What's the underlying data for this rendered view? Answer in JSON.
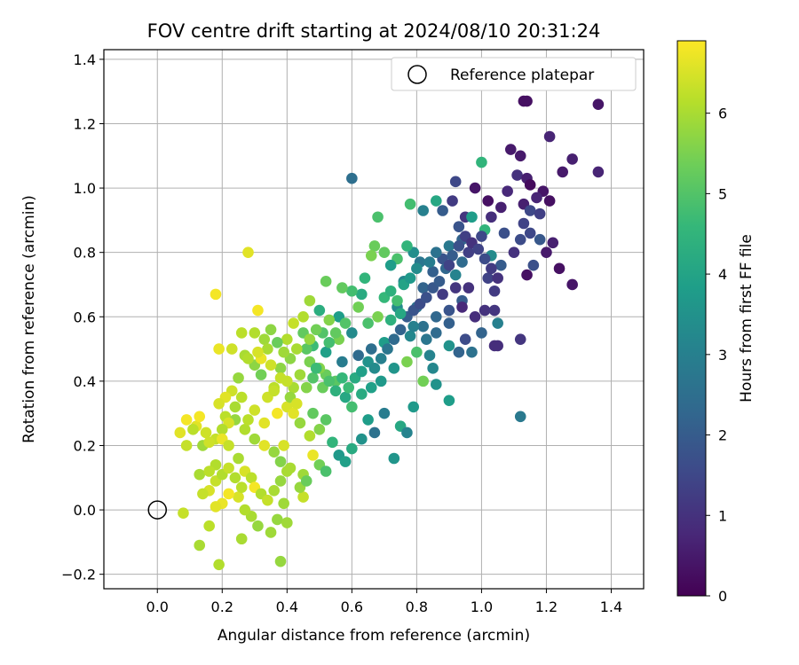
{
  "chart_data": {
    "type": "scatter",
    "title": "FOV centre drift starting at 2024/08/10 20:31:24",
    "xlabel": "Angular distance from reference (arcmin)",
    "ylabel": "Rotation from reference (arcmin)",
    "xlim": [
      -0.165,
      1.5
    ],
    "ylim": [
      -0.245,
      1.43
    ],
    "xticks": [
      "0.0",
      "0.2",
      "0.4",
      "0.6",
      "0.8",
      "1.0",
      "1.2",
      "1.4"
    ],
    "yticks": [
      "−0.2",
      "0.0",
      "0.2",
      "0.4",
      "0.6",
      "0.8",
      "1.0",
      "1.2",
      "1.4"
    ],
    "grid": true,
    "legend": {
      "position": "top-right",
      "entries": [
        {
          "label": "Reference platepar",
          "marker": "open-circle"
        }
      ]
    },
    "reference_point": {
      "x": 0.0,
      "y": 0.0
    },
    "colorbar": {
      "label": "Hours from first FF file",
      "range": [
        0,
        6.9
      ],
      "ticks": [
        "0",
        "1",
        "2",
        "3",
        "4",
        "5",
        "6"
      ],
      "colormap": "viridis"
    },
    "colormap_stops": [
      "#440154",
      "#482878",
      "#3e4989",
      "#31688e",
      "#26828e",
      "#1f9e89",
      "#35b779",
      "#6ece58",
      "#b5de2b",
      "#fde725"
    ],
    "points": [
      [
        1.14,
        1.27,
        0.3
      ],
      [
        1.13,
        1.27,
        0.3
      ],
      [
        1.36,
        1.26,
        0.4
      ],
      [
        1.21,
        1.16,
        0.7
      ],
      [
        1.09,
        1.12,
        0.5
      ],
      [
        1.12,
        1.1,
        0.5
      ],
      [
        1.28,
        1.09,
        0.6
      ],
      [
        1.25,
        1.05,
        0.5
      ],
      [
        1.36,
        1.05,
        0.7
      ],
      [
        1.11,
        1.04,
        1.0
      ],
      [
        1.14,
        1.03,
        0.6
      ],
      [
        1.15,
        1.01,
        0.2
      ],
      [
        1.19,
        0.99,
        0.4
      ],
      [
        1.21,
        0.96,
        0.3
      ],
      [
        1.17,
        0.97,
        0.7
      ],
      [
        1.13,
        0.95,
        0.6
      ],
      [
        1.08,
        0.99,
        0.8
      ],
      [
        1.06,
        0.94,
        0.6
      ],
      [
        1.15,
        0.93,
        1.5
      ],
      [
        1.03,
        0.91,
        0.9
      ],
      [
        0.95,
        0.91,
        1.1
      ],
      [
        0.93,
        0.88,
        1.8
      ],
      [
        1.18,
        0.92,
        1.3
      ],
      [
        1.13,
        0.89,
        1.4
      ],
      [
        1.15,
        0.86,
        1.5
      ],
      [
        1.12,
        0.84,
        1.6
      ],
      [
        1.18,
        0.84,
        1.9
      ],
      [
        1.07,
        0.86,
        1.7
      ],
      [
        1.22,
        0.83,
        0.6
      ],
      [
        1.2,
        0.8,
        0.5
      ],
      [
        1.1,
        0.8,
        1.0
      ],
      [
        1.16,
        0.76,
        1.7
      ],
      [
        1.24,
        0.75,
        0.3
      ],
      [
        1.14,
        0.73,
        0.3
      ],
      [
        1.28,
        0.7,
        0.4
      ],
      [
        0.92,
        1.02,
        1.5
      ],
      [
        0.6,
        1.03,
        2.5
      ],
      [
        1.0,
        1.08,
        4.5
      ],
      [
        0.98,
        1.0,
        0.4
      ],
      [
        1.02,
        0.96,
        0.3
      ],
      [
        0.91,
        0.96,
        1.2
      ],
      [
        0.88,
        0.93,
        2.0
      ],
      [
        0.82,
        0.93,
        3.0
      ],
      [
        0.86,
        0.96,
        4.1
      ],
      [
        0.78,
        0.95,
        4.8
      ],
      [
        0.97,
        0.91,
        3.8
      ],
      [
        1.01,
        0.87,
        4.5
      ],
      [
        0.68,
        0.91,
        4.9
      ],
      [
        1.0,
        0.85,
        1.5
      ],
      [
        0.96,
        0.8,
        1.3
      ],
      [
        0.94,
        0.84,
        2.2
      ],
      [
        0.9,
        0.82,
        2.8
      ],
      [
        0.88,
        0.78,
        1.8
      ],
      [
        0.94,
        0.77,
        2.4
      ],
      [
        0.92,
        0.73,
        3.1
      ],
      [
        0.85,
        0.74,
        2.1
      ],
      [
        0.81,
        0.77,
        2.7
      ],
      [
        0.79,
        0.8,
        3.4
      ],
      [
        0.77,
        0.82,
        4.5
      ],
      [
        0.74,
        0.78,
        4.9
      ],
      [
        0.72,
        0.76,
        3.8
      ],
      [
        0.7,
        0.8,
        5.2
      ],
      [
        0.67,
        0.82,
        5.3
      ],
      [
        0.66,
        0.79,
        5.5
      ],
      [
        0.76,
        0.71,
        3.2
      ],
      [
        0.82,
        0.69,
        2.2
      ],
      [
        0.88,
        0.67,
        1.2
      ],
      [
        0.96,
        0.69,
        1.0
      ],
      [
        1.02,
        0.72,
        1.4
      ],
      [
        1.06,
        0.76,
        2.0
      ],
      [
        1.03,
        0.79,
        3.3
      ],
      [
        1.04,
        0.68,
        1.2
      ],
      [
        1.01,
        0.62,
        1.0
      ],
      [
        0.94,
        0.65,
        2.0
      ],
      [
        0.9,
        0.62,
        1.8
      ],
      [
        0.86,
        0.6,
        2.3
      ],
      [
        0.8,
        0.63,
        2.6
      ],
      [
        0.74,
        0.63,
        3.3
      ],
      [
        0.7,
        0.66,
        4.6
      ],
      [
        0.68,
        0.6,
        5.5
      ],
      [
        0.65,
        0.58,
        4.9
      ],
      [
        0.63,
        0.67,
        4.2
      ],
      [
        0.6,
        0.68,
        4.8
      ],
      [
        0.57,
        0.69,
        5.2
      ],
      [
        0.52,
        0.71,
        5.3
      ],
      [
        0.5,
        0.62,
        4.3
      ],
      [
        0.56,
        0.6,
        3.8
      ],
      [
        0.6,
        0.55,
        3.3
      ],
      [
        0.56,
        0.53,
        5.5
      ],
      [
        0.53,
        0.59,
        5.6
      ],
      [
        0.47,
        0.65,
        5.9
      ],
      [
        0.45,
        0.6,
        6.1
      ],
      [
        0.42,
        0.58,
        6.3
      ],
      [
        0.4,
        0.53,
        6.1
      ],
      [
        0.45,
        0.55,
        5.2
      ],
      [
        0.48,
        0.51,
        4.7
      ],
      [
        0.52,
        0.49,
        3.9
      ],
      [
        0.57,
        0.46,
        2.9
      ],
      [
        0.62,
        0.48,
        2.4
      ],
      [
        0.66,
        0.5,
        2.5
      ],
      [
        0.7,
        0.52,
        3.8
      ],
      [
        0.78,
        0.54,
        3.2
      ],
      [
        0.82,
        0.57,
        2.6
      ],
      [
        0.86,
        0.55,
        2.4
      ],
      [
        0.9,
        0.58,
        2.1
      ],
      [
        0.95,
        0.53,
        1.6
      ],
      [
        1.0,
        0.55,
        2.2
      ],
      [
        1.05,
        0.58,
        3.0
      ],
      [
        1.04,
        0.51,
        0.9
      ],
      [
        0.97,
        0.49,
        2.6
      ],
      [
        0.9,
        0.51,
        3.5
      ],
      [
        0.84,
        0.48,
        3.1
      ],
      [
        0.8,
        0.49,
        4.9
      ],
      [
        0.77,
        0.46,
        5.5
      ],
      [
        0.73,
        0.44,
        3.6
      ],
      [
        0.69,
        0.4,
        3.7
      ],
      [
        0.66,
        0.38,
        3.9
      ],
      [
        0.63,
        0.36,
        4.2
      ],
      [
        0.6,
        0.32,
        4.8
      ],
      [
        0.58,
        0.35,
        4.1
      ],
      [
        0.55,
        0.4,
        5.1
      ],
      [
        0.52,
        0.42,
        5.3
      ],
      [
        0.5,
        0.44,
        5.6
      ],
      [
        0.47,
        0.46,
        5.5
      ],
      [
        0.44,
        0.42,
        5.9
      ],
      [
        0.42,
        0.38,
        6.0
      ],
      [
        0.4,
        0.4,
        6.3
      ],
      [
        0.38,
        0.44,
        5.7
      ],
      [
        0.36,
        0.38,
        6.2
      ],
      [
        0.34,
        0.35,
        6.4
      ],
      [
        0.32,
        0.42,
        5.4
      ],
      [
        0.3,
        0.45,
        5.7
      ],
      [
        0.27,
        0.48,
        6.0
      ],
      [
        0.25,
        0.41,
        5.8
      ],
      [
        0.23,
        0.37,
        6.4
      ],
      [
        0.21,
        0.35,
        6.6
      ],
      [
        0.19,
        0.33,
        6.5
      ],
      [
        0.21,
        0.29,
        6.2
      ],
      [
        0.24,
        0.28,
        5.8
      ],
      [
        0.27,
        0.25,
        6.1
      ],
      [
        0.3,
        0.22,
        5.9
      ],
      [
        0.33,
        0.2,
        6.6
      ],
      [
        0.36,
        0.18,
        5.8
      ],
      [
        0.38,
        0.15,
        5.6
      ],
      [
        0.41,
        0.13,
        6.0
      ],
      [
        0.45,
        0.11,
        5.9
      ],
      [
        0.48,
        0.17,
        6.7
      ],
      [
        0.5,
        0.14,
        5.4
      ],
      [
        0.52,
        0.12,
        4.9
      ],
      [
        0.54,
        0.21,
        4.5
      ],
      [
        0.56,
        0.17,
        3.7
      ],
      [
        0.58,
        0.15,
        3.9
      ],
      [
        0.6,
        0.19,
        4.2
      ],
      [
        0.63,
        0.22,
        3.5
      ],
      [
        0.65,
        0.28,
        3.8
      ],
      [
        0.67,
        0.24,
        2.6
      ],
      [
        0.7,
        0.3,
        2.9
      ],
      [
        0.73,
        0.16,
        3.6
      ],
      [
        0.75,
        0.26,
        4.1
      ],
      [
        0.77,
        0.24,
        3.1
      ],
      [
        0.79,
        0.32,
        3.7
      ],
      [
        0.82,
        0.4,
        5.4
      ],
      [
        0.85,
        0.44,
        3.2
      ],
      [
        0.86,
        0.39,
        3.5
      ],
      [
        0.9,
        0.34,
        3.8
      ],
      [
        0.93,
        0.49,
        2.2
      ],
      [
        1.12,
        0.29,
        2.8
      ],
      [
        1.12,
        0.53,
        1.1
      ],
      [
        1.05,
        0.51,
        0.9
      ],
      [
        0.18,
        0.67,
        6.8
      ],
      [
        0.28,
        0.8,
        6.6
      ],
      [
        0.31,
        0.62,
        6.8
      ],
      [
        0.19,
        0.5,
        6.7
      ],
      [
        0.23,
        0.5,
        6.4
      ],
      [
        0.26,
        0.55,
        6.2
      ],
      [
        0.3,
        0.55,
        6.1
      ],
      [
        0.33,
        0.53,
        5.9
      ],
      [
        0.35,
        0.56,
        5.7
      ],
      [
        0.28,
        0.47,
        6.1
      ],
      [
        0.32,
        0.47,
        6.7
      ],
      [
        0.35,
        0.45,
        6.4
      ],
      [
        0.38,
        0.41,
        6.3
      ],
      [
        0.4,
        0.32,
        6.5
      ],
      [
        0.42,
        0.3,
        6.6
      ],
      [
        0.44,
        0.27,
        5.8
      ],
      [
        0.47,
        0.23,
        6.1
      ],
      [
        0.45,
        0.04,
        6.3
      ],
      [
        0.44,
        0.07,
        5.8
      ],
      [
        0.46,
        0.09,
        5.3
      ],
      [
        0.48,
        0.3,
        5.2
      ],
      [
        0.5,
        0.25,
        5.6
      ],
      [
        0.52,
        0.28,
        5.1
      ],
      [
        0.37,
        0.3,
        6.8
      ],
      [
        0.33,
        0.27,
        6.6
      ],
      [
        0.3,
        0.31,
        6.4
      ],
      [
        0.28,
        0.28,
        6.2
      ],
      [
        0.26,
        0.35,
        6.2
      ],
      [
        0.24,
        0.32,
        6.0
      ],
      [
        0.22,
        0.27,
        6.5
      ],
      [
        0.2,
        0.25,
        6.1
      ],
      [
        0.18,
        0.22,
        6.3
      ],
      [
        0.15,
        0.24,
        6.4
      ],
      [
        0.12,
        0.26,
        6.6
      ],
      [
        0.09,
        0.28,
        6.8
      ],
      [
        0.09,
        0.2,
        6.3
      ],
      [
        0.07,
        0.24,
        6.6
      ],
      [
        0.11,
        0.25,
        6.2
      ],
      [
        0.13,
        0.29,
        6.8
      ],
      [
        0.14,
        0.2,
        5.9
      ],
      [
        0.16,
        0.21,
        6.4
      ],
      [
        0.18,
        0.14,
        6.1
      ],
      [
        0.2,
        0.22,
        6.7
      ],
      [
        0.22,
        0.2,
        6.3
      ],
      [
        0.25,
        0.16,
        6.0
      ],
      [
        0.27,
        0.12,
        6.5
      ],
      [
        0.29,
        0.1,
        6.2
      ],
      [
        0.3,
        0.07,
        6.8
      ],
      [
        0.32,
        0.05,
        6.1
      ],
      [
        0.34,
        0.03,
        6.3
      ],
      [
        0.36,
        0.06,
        6.0
      ],
      [
        0.38,
        0.09,
        5.8
      ],
      [
        0.4,
        0.12,
        6.0
      ],
      [
        0.39,
        0.02,
        5.9
      ],
      [
        0.37,
        -0.03,
        5.8
      ],
      [
        0.35,
        -0.07,
        5.9
      ],
      [
        0.31,
        -0.05,
        5.8
      ],
      [
        0.29,
        -0.02,
        6.0
      ],
      [
        0.27,
        0.0,
        6.1
      ],
      [
        0.25,
        0.04,
        6.5
      ],
      [
        0.22,
        0.05,
        6.8
      ],
      [
        0.2,
        0.02,
        6.7
      ],
      [
        0.18,
        0.01,
        6.6
      ],
      [
        0.16,
        0.06,
        6.5
      ],
      [
        0.14,
        0.05,
        6.3
      ],
      [
        0.13,
        0.11,
        6.0
      ],
      [
        0.16,
        0.12,
        6.2
      ],
      [
        0.18,
        0.09,
        6.3
      ],
      [
        0.2,
        0.11,
        6.1
      ],
      [
        0.22,
        0.13,
        6.3
      ],
      [
        0.24,
        0.1,
        6.1
      ],
      [
        0.26,
        0.07,
        6.2
      ],
      [
        0.08,
        -0.01,
        6.3
      ],
      [
        0.16,
        -0.05,
        6.2
      ],
      [
        0.13,
        -0.11,
        6.0
      ],
      [
        0.19,
        -0.17,
        6.1
      ],
      [
        0.26,
        -0.09,
        6.0
      ],
      [
        0.38,
        -0.16,
        5.8
      ],
      [
        0.4,
        -0.04,
        5.9
      ],
      [
        0.36,
        0.37,
        6.3
      ],
      [
        0.39,
        0.2,
        6.5
      ],
      [
        0.41,
        0.35,
        5.8
      ],
      [
        0.43,
        0.33,
        6.5
      ],
      [
        0.46,
        0.5,
        5.1
      ],
      [
        0.46,
        0.38,
        5.6
      ],
      [
        0.48,
        0.41,
        5.0
      ],
      [
        0.49,
        0.44,
        4.7
      ],
      [
        0.51,
        0.38,
        5.3
      ],
      [
        0.53,
        0.4,
        4.9
      ],
      [
        0.55,
        0.37,
        4.4
      ],
      [
        0.57,
        0.41,
        4.6
      ],
      [
        0.59,
        0.38,
        4.7
      ],
      [
        0.61,
        0.41,
        4.2
      ],
      [
        0.63,
        0.43,
        3.9
      ],
      [
        0.65,
        0.46,
        3.5
      ],
      [
        0.67,
        0.44,
        3.3
      ],
      [
        0.69,
        0.47,
        3.0
      ],
      [
        0.71,
        0.5,
        2.7
      ],
      [
        0.73,
        0.53,
        2.4
      ],
      [
        0.75,
        0.56,
        2.2
      ],
      [
        0.77,
        0.6,
        2.0
      ],
      [
        0.79,
        0.62,
        1.8
      ],
      [
        0.81,
        0.64,
        1.6
      ],
      [
        0.83,
        0.66,
        1.7
      ],
      [
        0.85,
        0.69,
        1.9
      ],
      [
        0.87,
        0.71,
        2.0
      ],
      [
        0.89,
        0.75,
        2.3
      ],
      [
        0.91,
        0.79,
        2.0
      ],
      [
        0.93,
        0.82,
        1.7
      ],
      [
        0.95,
        0.85,
        1.3
      ],
      [
        0.97,
        0.83,
        1.0
      ],
      [
        0.99,
        0.81,
        1.4
      ],
      [
        1.01,
        0.78,
        1.6
      ],
      [
        1.03,
        0.75,
        1.2
      ],
      [
        1.05,
        0.72,
        1.0
      ],
      [
        0.64,
        0.72,
        4.5
      ],
      [
        0.62,
        0.63,
        5.4
      ],
      [
        0.58,
        0.58,
        5.0
      ],
      [
        0.55,
        0.55,
        5.2
      ],
      [
        0.53,
        0.52,
        4.8
      ],
      [
        0.51,
        0.55,
        5.0
      ],
      [
        0.49,
        0.56,
        5.4
      ],
      [
        0.47,
        0.53,
        5.8
      ],
      [
        0.43,
        0.5,
        6.0
      ],
      [
        0.41,
        0.47,
        5.7
      ],
      [
        0.39,
        0.49,
        5.9
      ],
      [
        0.37,
        0.52,
        5.3
      ],
      [
        0.34,
        0.5,
        6.0
      ],
      [
        0.31,
        0.49,
        6.5
      ],
      [
        0.72,
        0.68,
        4.4
      ],
      [
        0.74,
        0.65,
        4.8
      ],
      [
        0.76,
        0.7,
        4.0
      ],
      [
        0.78,
        0.72,
        3.7
      ],
      [
        0.8,
        0.75,
        3.3
      ],
      [
        0.84,
        0.77,
        2.9
      ],
      [
        0.86,
        0.8,
        2.6
      ],
      [
        0.9,
        0.76,
        1.4
      ],
      [
        0.92,
        0.69,
        1.1
      ],
      [
        0.94,
        0.63,
        0.8
      ],
      [
        0.98,
        0.6,
        0.9
      ],
      [
        1.04,
        0.62,
        1.1
      ],
      [
        0.72,
        0.59,
        4.4
      ],
      [
        0.75,
        0.61,
        4.1
      ],
      [
        0.79,
        0.57,
        3.0
      ],
      [
        0.83,
        0.53,
        2.7
      ]
    ]
  }
}
